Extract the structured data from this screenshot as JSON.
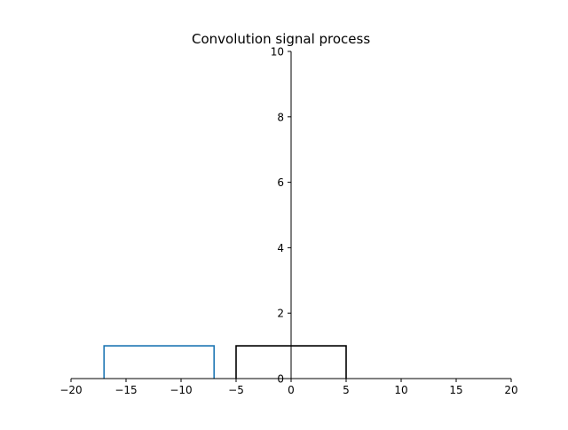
{
  "chart_data": {
    "type": "line",
    "title": "Convolution signal process",
    "xlabel": "",
    "ylabel": "",
    "xlim": [
      -20,
      20
    ],
    "ylim": [
      0,
      10
    ],
    "xticks": [
      -20,
      -15,
      -10,
      -5,
      0,
      5,
      10,
      15,
      20
    ],
    "xtick_labels": [
      "−20",
      "−15",
      "−10",
      "−5",
      "0",
      "5",
      "10",
      "15",
      "20"
    ],
    "yticks": [
      0,
      2,
      4,
      6,
      8,
      10
    ],
    "ytick_labels": [
      "0",
      "2",
      "4",
      "6",
      "8",
      "10"
    ],
    "spines": "left and bottom at zero",
    "grid": false,
    "series": [
      {
        "color": "#1f77b4",
        "x": [
          -17,
          -17,
          -7,
          -7
        ],
        "y": [
          0,
          1,
          1,
          0
        ]
      },
      {
        "color": "#000000",
        "x": [
          -5,
          -5,
          5,
          5
        ],
        "y": [
          0,
          1,
          1,
          0
        ]
      }
    ]
  }
}
